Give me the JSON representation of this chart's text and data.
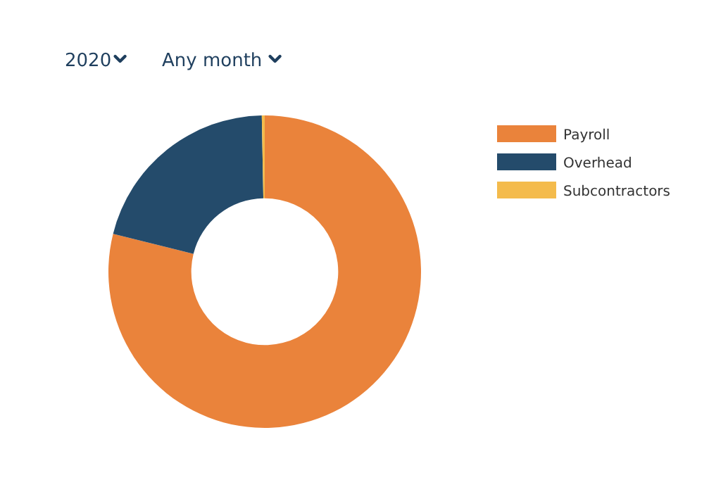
{
  "chart_data": {
    "type": "donut",
    "categories": [
      "Payroll",
      "Overhead",
      "Subcontractors"
    ],
    "values": [
      78.9,
      20.8,
      0.3
    ],
    "colors": [
      "#ea833b",
      "#244b6b",
      "#f4bb4c"
    ],
    "legend": "top right",
    "annotations": [
      "2020",
      "Any month"
    ]
  }
}
